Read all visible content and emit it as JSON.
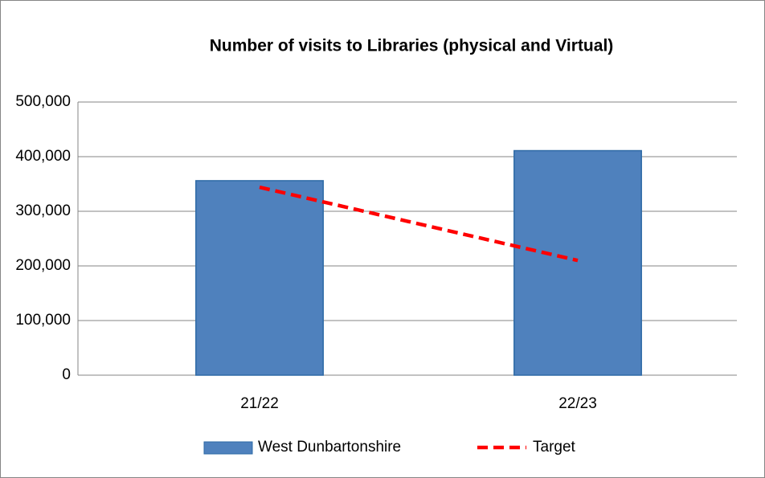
{
  "chart_data": {
    "type": "bar",
    "title": "Number of visits to Libraries (physical and Virtual)",
    "categories": [
      "21/22",
      "22/23"
    ],
    "series": [
      {
        "name": "West Dunbartonshire",
        "type": "bar",
        "color": "#4f81bd",
        "values": [
          356000,
          411000
        ]
      },
      {
        "name": "Target",
        "type": "line",
        "color": "#ff0000",
        "dashed": true,
        "values": [
          344000,
          210000
        ]
      }
    ],
    "ylim": [
      0,
      500000
    ],
    "yticks": [
      0,
      {
        "value": 100000,
        "label": "100,000"
      },
      {
        "value": 200000,
        "label": "200,000"
      },
      {
        "value": 300000,
        "label": "300,000"
      },
      {
        "value": 400000,
        "label": "400,000"
      },
      {
        "value": 500000,
        "label": "500,000"
      }
    ],
    "grid": true,
    "legend": "bottom"
  }
}
